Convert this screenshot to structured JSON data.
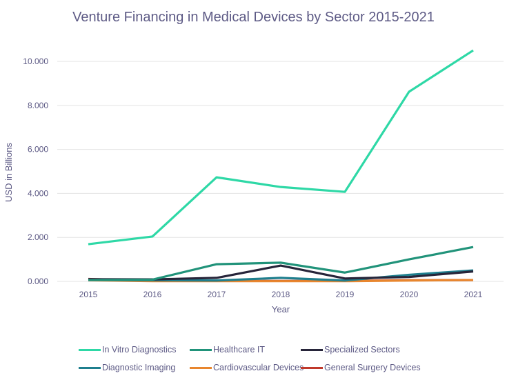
{
  "chart_data": {
    "type": "line",
    "title": "Venture Financing in Medical Devices by Sector 2015-2021",
    "xlabel": "Year",
    "ylabel": "USD in Billions",
    "x": [
      "2015",
      "2016",
      "2017",
      "2018",
      "2019",
      "2020",
      "2021"
    ],
    "ylim": [
      0,
      10000
    ],
    "yticks": [
      "0.000",
      "2.000",
      "4.000",
      "6.000",
      "8.000",
      "10.000"
    ],
    "ytick_values": [
      0,
      2000,
      4000,
      6000,
      8000,
      10000
    ],
    "grid": true,
    "legend_position": "bottom",
    "series": [
      {
        "name": "In Vitro Diagnostics",
        "color": "#2ed8a6",
        "values": [
          1690,
          2040,
          4730,
          4290,
          4070,
          8620,
          10500
        ]
      },
      {
        "name": "Healthcare IT",
        "color": "#21937a",
        "values": [
          60,
          80,
          780,
          850,
          400,
          1000,
          1560
        ]
      },
      {
        "name": "Specialized Sectors",
        "color": "#27253a",
        "values": [
          100,
          90,
          160,
          720,
          130,
          200,
          450
        ]
      },
      {
        "name": "Diagnostic Imaging",
        "color": "#1f7f8e",
        "values": [
          60,
          50,
          40,
          160,
          40,
          300,
          500
        ]
      },
      {
        "name": "Cardiovascular Devices",
        "color": "#e8862e",
        "values": [
          50,
          10,
          10,
          10,
          10,
          40,
          60
        ]
      },
      {
        "name": "General Surgery Devices",
        "color": "#c0392b",
        "values": [
          110,
          20,
          20,
          20,
          20,
          50,
          60
        ]
      }
    ]
  }
}
